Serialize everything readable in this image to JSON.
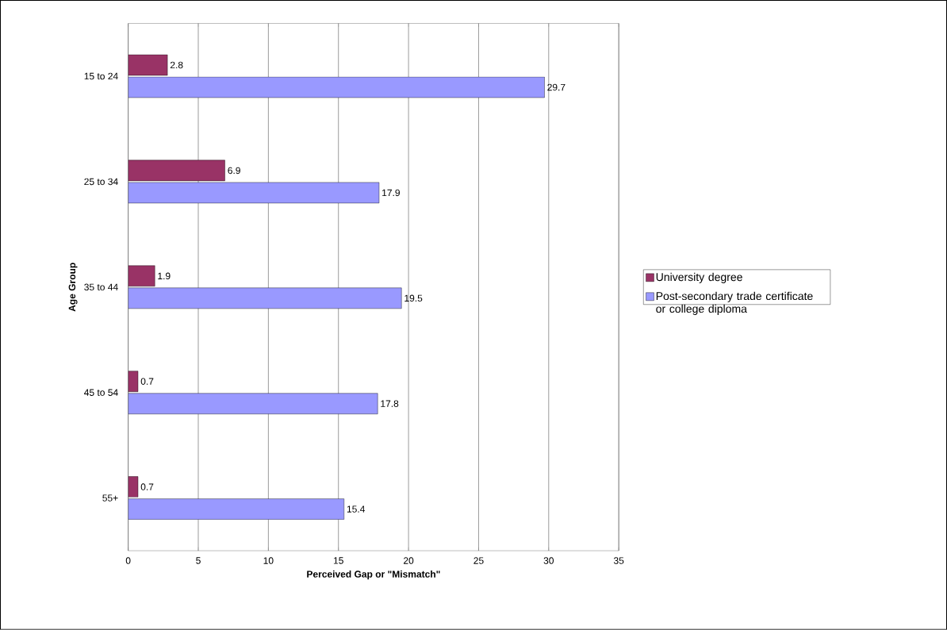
{
  "chart_data": {
    "type": "bar",
    "orientation": "horizontal",
    "categories": [
      "15 to 24",
      "25 to 34",
      "35 to 44",
      "45 to 54",
      "55+"
    ],
    "series": [
      {
        "name": "University degree",
        "color": "#993366",
        "values": [
          2.8,
          6.9,
          1.9,
          0.7,
          0.7
        ]
      },
      {
        "name": "Post-secondary trade certificate or college diploma",
        "color": "#9999ff",
        "values": [
          29.7,
          17.9,
          19.5,
          17.8,
          15.4
        ]
      }
    ],
    "xlabel": "Perceived Gap or \"Mismatch\"",
    "ylabel": "Age Group",
    "xlim": [
      0,
      35
    ],
    "xticks": [
      0,
      5,
      10,
      15,
      20,
      25,
      30,
      35
    ],
    "grid": "x",
    "legend": "right",
    "data_labels": true
  }
}
